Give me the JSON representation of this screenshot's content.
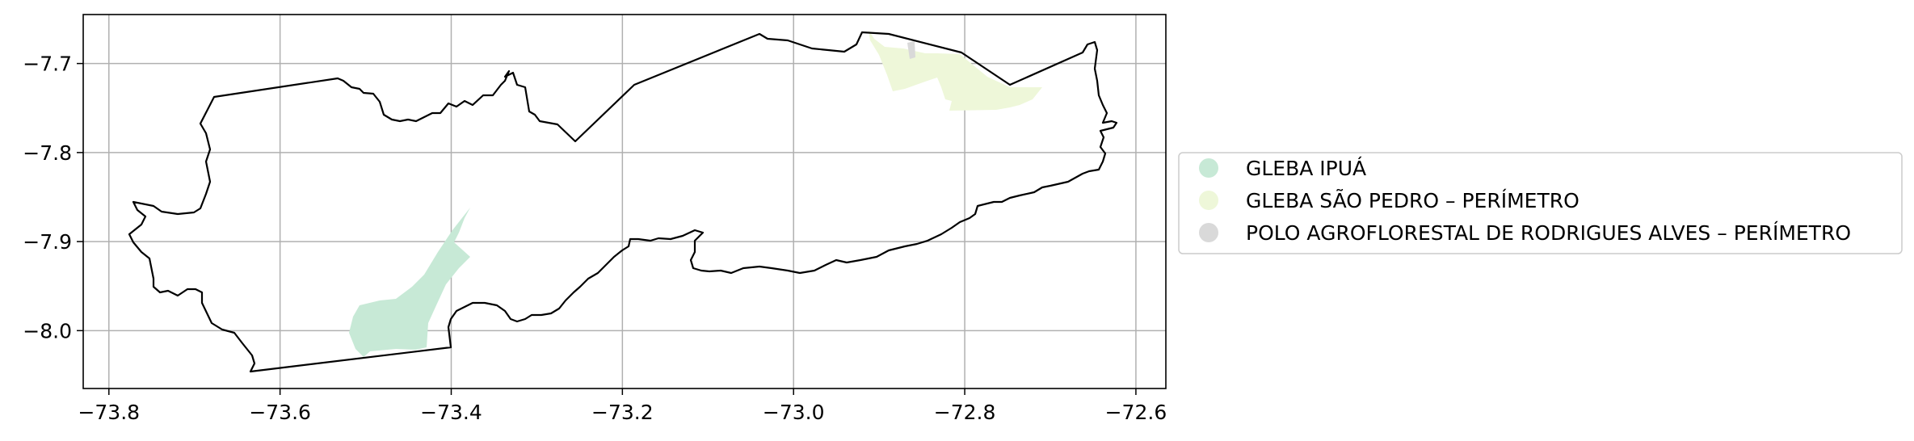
{
  "map": {
    "x_axis": {
      "min": -73.83,
      "max": -72.565,
      "ticks": [
        -73.8,
        -73.6,
        -73.4,
        -73.2,
        -73.0,
        -72.8,
        -72.6
      ],
      "tick_labels": [
        "−73.8",
        "−73.6",
        "−73.4",
        "−73.2",
        "−73.0",
        "−72.8",
        "−72.6"
      ]
    },
    "y_axis": {
      "min": -8.065,
      "max": -7.645,
      "ticks": [
        -7.7,
        -7.8,
        -7.9,
        -8.0
      ],
      "tick_labels": [
        "−7.7",
        "−7.8",
        "−7.9",
        "−8.0"
      ]
    },
    "grid": true,
    "legend": {
      "placement": "right",
      "items": [
        {
          "label": "GLEBA IPUÁ",
          "color": "#c7e9d6"
        },
        {
          "label": "GLEBA SÃO PEDRO – PERÍMETRO",
          "color": "#eef7d9"
        },
        {
          "label": "POLO AGROFLORESTAL DE RODRIGUES ALVES – PERÍMETRO",
          "color": "#d9d9d9"
        }
      ]
    },
    "colors": {
      "boundary": "#000000",
      "grid": "#b0b0b0"
    }
  }
}
